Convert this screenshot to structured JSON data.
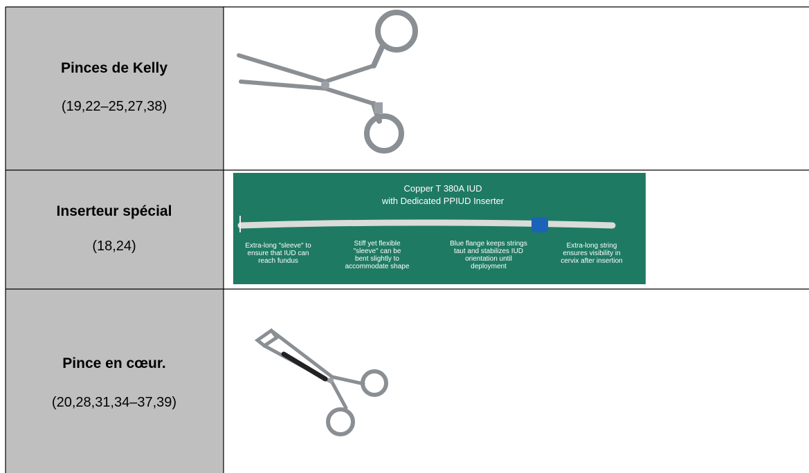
{
  "table": {
    "rows": [
      {
        "name": "Pinces de Kelly",
        "refs": "(19,22–25,27,38)"
      },
      {
        "name": "Inserteur spécial",
        "refs": "(18,24)"
      },
      {
        "name": "Pince en cœur.",
        "refs": "(20,28,31,34–37,39)"
      }
    ]
  },
  "inserter_image": {
    "title": [
      "Copper T 380A IUD",
      "with Dedicated PPIUD Inserter"
    ],
    "captions": [
      [
        "Extra-long \"sleeve\" to",
        "ensure that IUD can",
        "reach fundus"
      ],
      [
        "Stiff yet flexible",
        "\"sleeve\" can be",
        "bent slightly to",
        "accommodate shape"
      ],
      [
        "Blue flange keeps strings",
        "taut and stabilizes IUD",
        "orientation until",
        "deployment"
      ],
      [
        "Extra-long string",
        "ensures visibility in",
        "cervix after insertion"
      ]
    ]
  }
}
